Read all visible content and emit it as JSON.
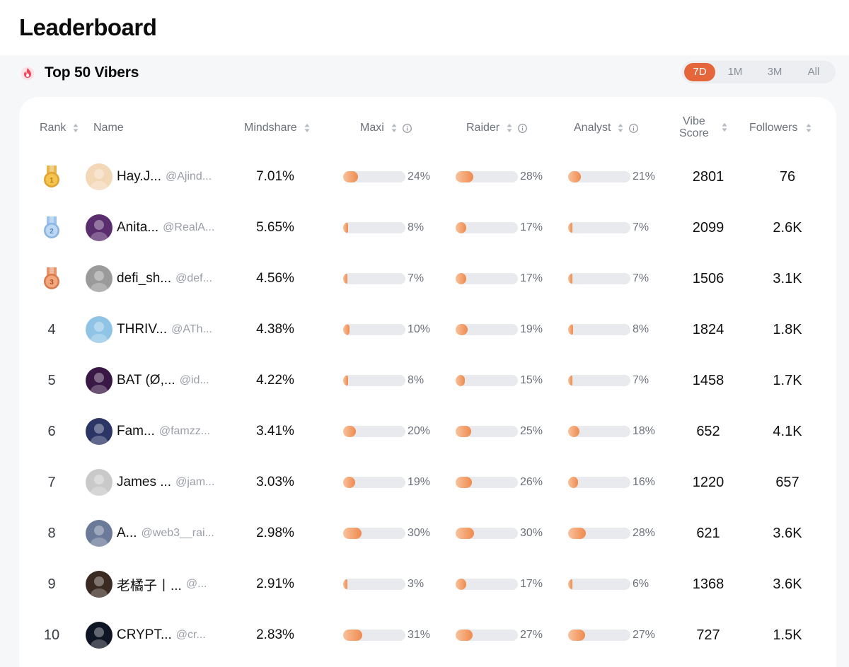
{
  "page_title": "Leaderboard",
  "section": {
    "title": "Top 50 Vibers",
    "icon": "flame-icon"
  },
  "range_tabs": [
    {
      "label": "7D",
      "active": true
    },
    {
      "label": "1M",
      "active": false
    },
    {
      "label": "3M",
      "active": false
    },
    {
      "label": "All",
      "active": false
    }
  ],
  "columns": {
    "rank": "Rank",
    "name": "Name",
    "mindshare": "Mindshare",
    "maxi": "Maxi",
    "raider": "Raider",
    "analyst": "Analyst",
    "vibe_score_1": "Vibe",
    "vibe_score_2": "Score",
    "followers": "Followers"
  },
  "colors": {
    "accent": "#e4663a",
    "bar_start": "#f9c29c",
    "bar_end": "#ef8a4e",
    "track": "#e9eaee"
  },
  "rows": [
    {
      "rank": "1",
      "medal": "gold",
      "name": "Hay.J...",
      "handle": "@Ajind...",
      "mindshare": "7.01%",
      "maxi": "24%",
      "maxi_v": 24,
      "raider": "28%",
      "raider_v": 28,
      "analyst": "21%",
      "analyst_v": 21,
      "vibe": "2801",
      "followers": "76",
      "avatar_bg": "#f3d8b8"
    },
    {
      "rank": "2",
      "medal": "silver",
      "name": "Anita...",
      "handle": "@RealA...",
      "mindshare": "5.65%",
      "maxi": "8%",
      "maxi_v": 8,
      "raider": "17%",
      "raider_v": 17,
      "analyst": "7%",
      "analyst_v": 7,
      "vibe": "2099",
      "followers": "2.6K",
      "avatar_bg": "#5a2d6e"
    },
    {
      "rank": "3",
      "medal": "bronze",
      "name": "defi_sh...",
      "handle": "@def...",
      "mindshare": "4.56%",
      "maxi": "7%",
      "maxi_v": 7,
      "raider": "17%",
      "raider_v": 17,
      "analyst": "7%",
      "analyst_v": 7,
      "vibe": "1506",
      "followers": "3.1K",
      "avatar_bg": "#9a9a9a"
    },
    {
      "rank": "4",
      "medal": "",
      "name": "THRIV...",
      "handle": "@ATh...",
      "mindshare": "4.38%",
      "maxi": "10%",
      "maxi_v": 10,
      "raider": "19%",
      "raider_v": 19,
      "analyst": "8%",
      "analyst_v": 8,
      "vibe": "1824",
      "followers": "1.8K",
      "avatar_bg": "#8fc4e6"
    },
    {
      "rank": "5",
      "medal": "",
      "name": "BAT (Ø,...",
      "handle": "@id...",
      "mindshare": "4.22%",
      "maxi": "8%",
      "maxi_v": 8,
      "raider": "15%",
      "raider_v": 15,
      "analyst": "7%",
      "analyst_v": 7,
      "vibe": "1458",
      "followers": "1.7K",
      "avatar_bg": "#3a1845"
    },
    {
      "rank": "6",
      "medal": "",
      "name": "Fam...",
      "handle": "@famzz...",
      "mindshare": "3.41%",
      "maxi": "20%",
      "maxi_v": 20,
      "raider": "25%",
      "raider_v": 25,
      "analyst": "18%",
      "analyst_v": 18,
      "vibe": "652",
      "followers": "4.1K",
      "avatar_bg": "#2b3566"
    },
    {
      "rank": "7",
      "medal": "",
      "name": "James ...",
      "handle": "@jam...",
      "mindshare": "3.03%",
      "maxi": "19%",
      "maxi_v": 19,
      "raider": "26%",
      "raider_v": 26,
      "analyst": "16%",
      "analyst_v": 16,
      "vibe": "1220",
      "followers": "657",
      "avatar_bg": "#c9c9c9"
    },
    {
      "rank": "8",
      "medal": "",
      "name": "A...",
      "handle": "@web3__rai...",
      "mindshare": "2.98%",
      "maxi": "30%",
      "maxi_v": 30,
      "raider": "30%",
      "raider_v": 30,
      "analyst": "28%",
      "analyst_v": 28,
      "vibe": "621",
      "followers": "3.6K",
      "avatar_bg": "#6b7a99"
    },
    {
      "rank": "9",
      "medal": "",
      "name": "老橘子丨...",
      "handle": "@...",
      "mindshare": "2.91%",
      "maxi": "3%",
      "maxi_v": 3,
      "raider": "17%",
      "raider_v": 17,
      "analyst": "6%",
      "analyst_v": 6,
      "vibe": "1368",
      "followers": "3.6K",
      "avatar_bg": "#3b2a22"
    },
    {
      "rank": "10",
      "medal": "",
      "name": "CRYPT...",
      "handle": "@cr...",
      "mindshare": "2.83%",
      "maxi": "31%",
      "maxi_v": 31,
      "raider": "27%",
      "raider_v": 27,
      "analyst": "27%",
      "analyst_v": 27,
      "vibe": "727",
      "followers": "1.5K",
      "avatar_bg": "#0e1524"
    }
  ]
}
